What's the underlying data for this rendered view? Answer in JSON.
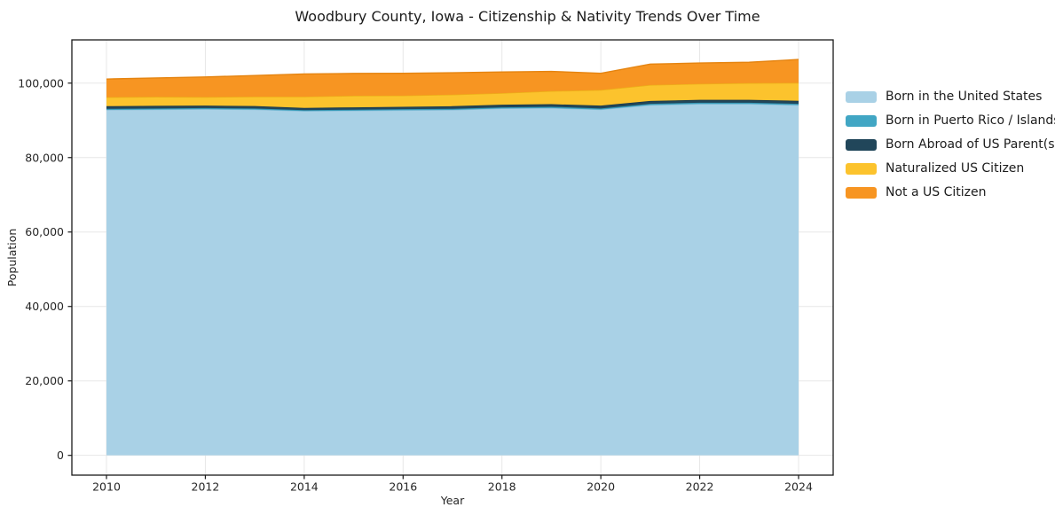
{
  "header": {
    "title": "Woodbury County, Iowa - Citizenship & Nativity Trends Over Time"
  },
  "chart_data": {
    "type": "area",
    "stacked": true,
    "title": "Woodbury County, Iowa - Citizenship & Nativity Trends Over Time",
    "xlabel": "Year",
    "ylabel": "Population",
    "x": [
      2010,
      2011,
      2012,
      2013,
      2014,
      2015,
      2016,
      2017,
      2018,
      2019,
      2020,
      2021,
      2022,
      2023,
      2024
    ],
    "series": [
      {
        "name": "Born in the United States",
        "color": "#a9d1e6",
        "edge_color": "#8fc0da",
        "values": [
          92800,
          92900,
          93000,
          92900,
          92500,
          92600,
          92700,
          92800,
          93200,
          93300,
          92900,
          94100,
          94400,
          94400,
          94100
        ]
      },
      {
        "name": "Born in Puerto Rico / Islands",
        "color": "#41a6c4",
        "edge_color": "#3392ae",
        "values": [
          300,
          300,
          300,
          300,
          250,
          250,
          300,
          300,
          300,
          350,
          300,
          350,
          350,
          350,
          350
        ]
      },
      {
        "name": "Born Abroad of US Parent(s)",
        "color": "#21465a",
        "edge_color": "#18374a",
        "values": [
          700,
          700,
          650,
          650,
          600,
          650,
          650,
          700,
          700,
          700,
          750,
          750,
          750,
          750,
          800
        ]
      },
      {
        "name": "Naturalized US Citizen",
        "color": "#fcc32d",
        "edge_color": "#ecb117",
        "values": [
          2400,
          2400,
          2300,
          2500,
          3000,
          3100,
          3000,
          3100,
          3100,
          3500,
          4200,
          4300,
          4300,
          4500,
          4800
        ]
      },
      {
        "name": "Not a US Citizen",
        "color": "#f79522",
        "edge_color": "#e58410",
        "values": [
          4900,
          5100,
          5400,
          5700,
          6100,
          6000,
          6000,
          5900,
          5700,
          5300,
          4500,
          5600,
          5600,
          5600,
          6300
        ]
      }
    ],
    "xlim": [
      2009.3,
      2024.7
    ],
    "ylim": [
      -5315,
      111615
    ],
    "xticks": [
      2010,
      2012,
      2014,
      2016,
      2018,
      2020,
      2022,
      2024
    ],
    "yticks": [
      {
        "value": 0,
        "label": "0"
      },
      {
        "value": 20000,
        "label": "20,000"
      },
      {
        "value": 40000,
        "label": "40,000"
      },
      {
        "value": 60000,
        "label": "60,000"
      },
      {
        "value": 80000,
        "label": "80,000"
      },
      {
        "value": 100000,
        "label": "100,000"
      }
    ],
    "grid": true,
    "grid_color": "#e7e7e7",
    "frame_color": "#1a1a1a",
    "legend_position": "right"
  }
}
